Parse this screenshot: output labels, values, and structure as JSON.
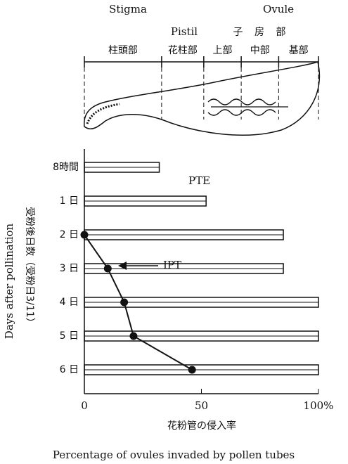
{
  "chart_data": {
    "type": "bar",
    "top_labels": {
      "stigma": "Stigma",
      "pistil": "Pistil",
      "ovule": "Ovule",
      "ovary_jp": "子 房 部"
    },
    "regions": [
      "柱頭部",
      "花柱部",
      "上部",
      "中部",
      "基部"
    ],
    "region_bounds": [
      0,
      33,
      51,
      67,
      83,
      100
    ],
    "categories": [
      "8時間",
      "1 日",
      "2 日",
      "3 日",
      "4 日",
      "5 日",
      "6 日"
    ],
    "series": [
      {
        "name": "PTE",
        "color": "#111111",
        "values": [
          32,
          52,
          85,
          85,
          100,
          100,
          100
        ]
      },
      {
        "name": "IPT",
        "color": "#111111",
        "values": [
          null,
          null,
          0,
          10,
          17,
          21,
          46
        ]
      }
    ],
    "xlim": [
      0,
      100
    ],
    "xticks": [
      0,
      50,
      {
        "value": 100,
        "label": "100%"
      }
    ],
    "y_label": "Days after pollination",
    "y_label_jp": "受粉後日数（受粉日3/11）",
    "x_label_jp": "花粉管の侵入率",
    "x_label": "Percentage of ovules invaded by pollen tubes"
  }
}
